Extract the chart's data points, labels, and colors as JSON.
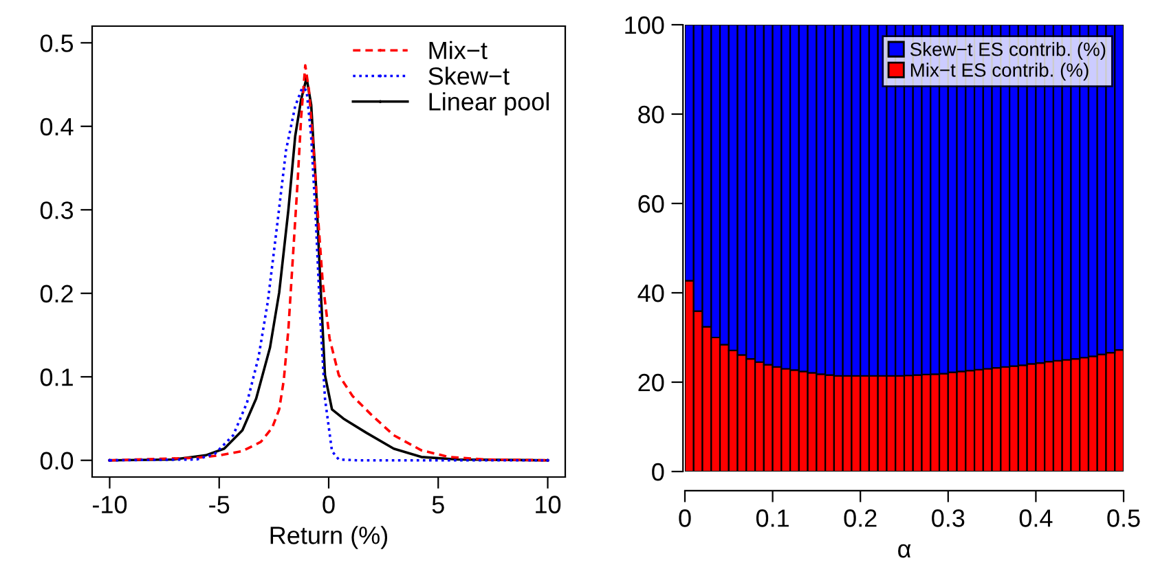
{
  "chart_data": [
    {
      "type": "line",
      "xlabel": "Return (%)",
      "xlim": [
        -10.8,
        10.8
      ],
      "ylim": [
        -0.02,
        0.52
      ],
      "xticks": [
        -10,
        -5,
        0,
        5,
        10
      ],
      "yticks": [
        {
          "value": 0,
          "label": "0.0"
        },
        0.1,
        0.2,
        0.3,
        0.4,
        0.5
      ],
      "legend": "top right",
      "grid": false,
      "series": [
        {
          "name": "Mix−t",
          "color": "#ff0000",
          "line_style": "dashed",
          "x": [
            -10,
            -6.03,
            -4.98,
            -3.94,
            -3.1,
            -2.58,
            -2.26,
            -2.05,
            -1.84,
            -1.63,
            -1.42,
            -1.26,
            -1.07,
            -0.9,
            -0.69,
            -0.48,
            -0.27,
            0.04,
            0.46,
            1.09,
            1.93,
            2.97,
            4.23,
            5.49,
            7.16,
            10
          ],
          "values": [
            0,
            0.003,
            0.006,
            0.011,
            0.022,
            0.039,
            0.061,
            0.096,
            0.157,
            0.245,
            0.333,
            0.41,
            0.473,
            0.443,
            0.371,
            0.289,
            0.212,
            0.146,
            0.102,
            0.077,
            0.055,
            0.03,
            0.012,
            0.004,
            0.001,
            0
          ]
        },
        {
          "name": "Skew−t",
          "color": "#0000ff",
          "line_style": "dotted",
          "x": [
            -10,
            -6.03,
            -5.19,
            -4.36,
            -3.73,
            -3.2,
            -2.78,
            -2.37,
            -1.95,
            -1.53,
            -1.21,
            -1.01,
            -0.8,
            -0.59,
            -0.38,
            -0.17,
            0.15,
            0.46,
            1.3,
            10
          ],
          "values": [
            0,
            0.001,
            0.008,
            0.03,
            0.069,
            0.124,
            0.19,
            0.278,
            0.371,
            0.424,
            0.446,
            0.443,
            0.388,
            0.289,
            0.168,
            0.074,
            0.011,
            0.001,
            0,
            0
          ]
        },
        {
          "name": "Linear pool",
          "color": "#000000",
          "line_style": "solid",
          "x": [
            -10,
            -7.08,
            -5.61,
            -4.77,
            -3.94,
            -3.31,
            -2.68,
            -2.26,
            -1.84,
            -1.53,
            -1.26,
            -1.01,
            -0.8,
            -0.59,
            -0.38,
            -0.17,
            0.15,
            0.67,
            1.72,
            2.97,
            4.23,
            5.9,
            10
          ],
          "values": [
            0,
            0.001,
            0.006,
            0.014,
            0.036,
            0.074,
            0.135,
            0.201,
            0.3,
            0.388,
            0.432,
            0.458,
            0.426,
            0.333,
            0.212,
            0.102,
            0.061,
            0.05,
            0.033,
            0.014,
            0.004,
            0.001,
            0
          ]
        }
      ]
    },
    {
      "type": "bar",
      "stacked": true,
      "xlabel": "α",
      "xlim": [
        0,
        0.5
      ],
      "ylim": [
        0,
        100
      ],
      "xticks": [
        0,
        0.1,
        0.2,
        0.3,
        0.4,
        0.5
      ],
      "yticks": [
        0,
        20,
        40,
        60,
        80,
        100
      ],
      "legend": "top right",
      "grid": false,
      "x": [
        0.005,
        0.015,
        0.025,
        0.035,
        0.045,
        0.055,
        0.065,
        0.075,
        0.085,
        0.095,
        0.105,
        0.115,
        0.125,
        0.135,
        0.145,
        0.155,
        0.165,
        0.175,
        0.185,
        0.195,
        0.205,
        0.215,
        0.225,
        0.235,
        0.245,
        0.255,
        0.265,
        0.275,
        0.285,
        0.295,
        0.305,
        0.315,
        0.325,
        0.335,
        0.345,
        0.355,
        0.365,
        0.375,
        0.385,
        0.395,
        0.405,
        0.415,
        0.425,
        0.435,
        0.445,
        0.455,
        0.465,
        0.475,
        0.485,
        0.495
      ],
      "series": [
        {
          "name": "Mix−t ES contrib. (%)",
          "color": "#ff0000",
          "values": [
            42.7,
            35.9,
            32.4,
            30.0,
            28.4,
            27.1,
            26.1,
            25.2,
            24.5,
            23.9,
            23.4,
            23.0,
            22.7,
            22.4,
            22.1,
            21.8,
            21.6,
            21.4,
            21.4,
            21.4,
            21.4,
            21.4,
            21.4,
            21.4,
            21.4,
            21.5,
            21.6,
            21.7,
            21.8,
            21.9,
            22.2,
            22.4,
            22.6,
            22.8,
            23.0,
            23.2,
            23.4,
            23.6,
            23.8,
            24.1,
            24.3,
            24.6,
            24.8,
            25.0,
            25.2,
            25.5,
            25.8,
            26.2,
            26.6,
            27.2
          ]
        },
        {
          "name": "Skew−t ES contrib. (%)",
          "color": "#0000ff",
          "values": [
            57.3,
            64.1,
            67.6,
            70.0,
            71.6,
            72.9,
            73.9,
            74.8,
            75.5,
            76.1,
            76.6,
            77.0,
            77.3,
            77.6,
            77.9,
            78.2,
            78.4,
            78.6,
            78.6,
            78.6,
            78.6,
            78.6,
            78.6,
            78.6,
            78.6,
            78.5,
            78.4,
            78.3,
            78.2,
            78.1,
            77.8,
            77.6,
            77.4,
            77.2,
            77.0,
            76.8,
            76.6,
            76.4,
            76.2,
            75.9,
            75.7,
            75.4,
            75.2,
            75.0,
            74.8,
            74.5,
            74.2,
            73.8,
            73.4,
            72.8
          ]
        }
      ]
    }
  ]
}
